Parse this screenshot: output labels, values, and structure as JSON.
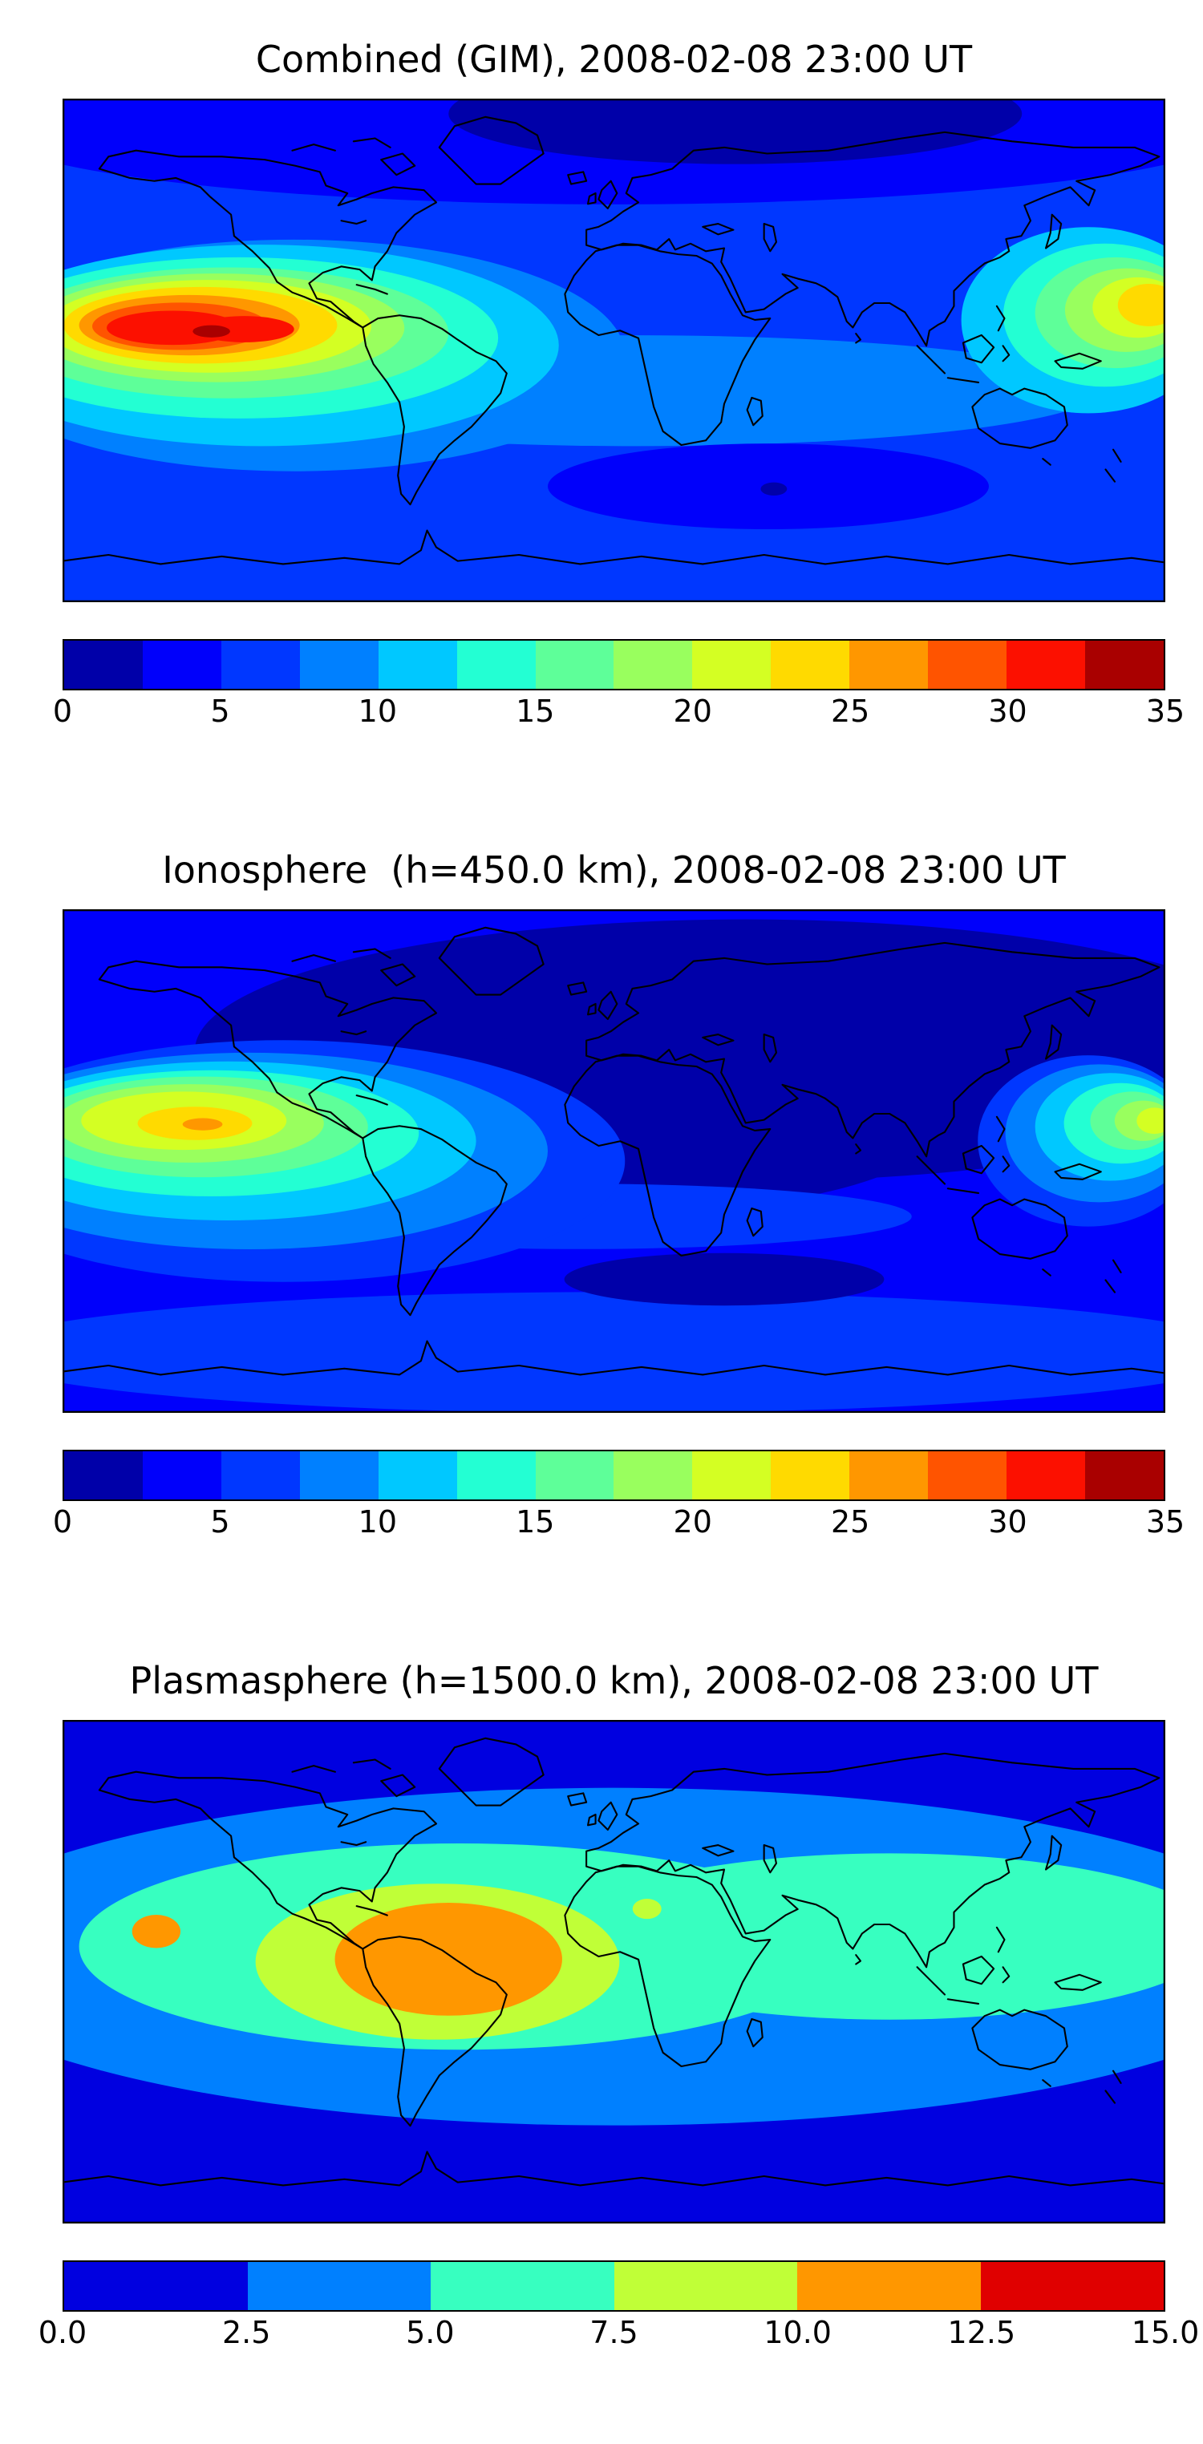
{
  "figure": {
    "background": "#ffffff",
    "frame_color": "#000000",
    "coastline_color": "#000000"
  },
  "chart_data": [
    {
      "type": "heatmap",
      "title": "Combined (GIM), 2008-02-08 23:00 UT",
      "subtitle": "",
      "projection": "equirectangular world map with black coastlines, filled contours",
      "colormap": "jet",
      "value_range": [
        0,
        35
      ],
      "contour_levels": [
        0,
        2.5,
        5,
        7.5,
        10,
        12.5,
        15,
        17.5,
        20,
        22.5,
        25,
        27.5,
        30,
        32.5,
        35
      ],
      "colors": [
        "#0000A9",
        "#0000FB",
        "#0037FF",
        "#0080FF",
        "#00C8FF",
        "#23FFD3",
        "#5EFF99",
        "#99FF5E",
        "#D4FF23",
        "#FFDA00",
        "#FF9700",
        "#FF5400",
        "#FC1000",
        "#A90000"
      ],
      "colorbar": {
        "orientation": "horizontal",
        "tick_values": [
          0,
          5,
          10,
          15,
          20,
          25,
          30,
          35
        ],
        "tick_labels": [
          "0",
          "5",
          "10",
          "15",
          "20",
          "25",
          "30",
          "35"
        ]
      },
      "base_value": 6,
      "features": [
        {
          "description": "primary maximum over eastern equatorial Pacific west of South America",
          "x": 0.12,
          "y": 0.46,
          "approx_value": 34
        },
        {
          "description": "secondary maximum over western equatorial Pacific at right edge",
          "x": 0.96,
          "y": 0.42,
          "approx_value": 25
        },
        {
          "description": "deep minimum over high northern latitudes (Siberia/Arctic)",
          "x": 0.61,
          "y": 0.05,
          "approx_value": 1.5
        },
        {
          "description": "low patch over southern Indian Ocean",
          "x": 0.64,
          "y": 0.77,
          "approx_value": 3
        }
      ],
      "blobs": [
        {
          "x": 0.5,
          "y": 0.05,
          "rx": 0.58,
          "ry": 0.16,
          "v": 4
        },
        {
          "x": 0.61,
          "y": 0.03,
          "rx": 0.26,
          "ry": 0.1,
          "v": 1.5
        },
        {
          "x": 0.52,
          "y": 0.58,
          "rx": 0.42,
          "ry": 0.11,
          "v": 9
        },
        {
          "x": 0.64,
          "y": 0.77,
          "rx": 0.2,
          "ry": 0.085,
          "v": 4
        },
        {
          "x": 0.645,
          "y": 0.775,
          "rx": 0.012,
          "ry": 0.013,
          "v": 1.5
        },
        {
          "x": 0.21,
          "y": 0.51,
          "rx": 0.3,
          "ry": 0.23,
          "v": 9
        },
        {
          "x": 0.18,
          "y": 0.49,
          "rx": 0.27,
          "ry": 0.2,
          "v": 11
        },
        {
          "x": 0.16,
          "y": 0.475,
          "rx": 0.235,
          "ry": 0.16,
          "v": 14
        },
        {
          "x": 0.15,
          "y": 0.465,
          "rx": 0.2,
          "ry": 0.13,
          "v": 16
        },
        {
          "x": 0.14,
          "y": 0.455,
          "rx": 0.17,
          "ry": 0.108,
          "v": 19
        },
        {
          "x": 0.133,
          "y": 0.452,
          "rx": 0.147,
          "ry": 0.092,
          "v": 21
        },
        {
          "x": 0.125,
          "y": 0.45,
          "rx": 0.124,
          "ry": 0.076,
          "v": 24
        },
        {
          "x": 0.115,
          "y": 0.45,
          "rx": 0.1,
          "ry": 0.06,
          "v": 26
        },
        {
          "x": 0.107,
          "y": 0.452,
          "rx": 0.08,
          "ry": 0.047,
          "v": 29
        },
        {
          "x": 0.1,
          "y": 0.455,
          "rx": 0.06,
          "ry": 0.034,
          "v": 31
        },
        {
          "x": 0.165,
          "y": 0.458,
          "rx": 0.045,
          "ry": 0.026,
          "v": 31
        },
        {
          "x": 0.135,
          "y": 0.462,
          "rx": 0.017,
          "ry": 0.012,
          "v": 34
        },
        {
          "x": 0.93,
          "y": 0.44,
          "rx": 0.115,
          "ry": 0.185,
          "v": 11
        },
        {
          "x": 0.945,
          "y": 0.43,
          "rx": 0.092,
          "ry": 0.142,
          "v": 14
        },
        {
          "x": 0.955,
          "y": 0.425,
          "rx": 0.073,
          "ry": 0.11,
          "v": 16
        },
        {
          "x": 0.965,
          "y": 0.42,
          "rx": 0.056,
          "ry": 0.083,
          "v": 19
        },
        {
          "x": 0.975,
          "y": 0.415,
          "rx": 0.041,
          "ry": 0.06,
          "v": 21
        },
        {
          "x": 0.985,
          "y": 0.41,
          "rx": 0.028,
          "ry": 0.042,
          "v": 24
        }
      ]
    },
    {
      "type": "heatmap",
      "title": "Ionosphere  (h=450.0 km), 2008-02-08 23:00 UT",
      "subtitle": "",
      "projection": "equirectangular world map with black coastlines, filled contours",
      "colormap": "jet",
      "value_range": [
        0,
        35
      ],
      "contour_levels": [
        0,
        2.5,
        5,
        7.5,
        10,
        12.5,
        15,
        17.5,
        20,
        22.5,
        25,
        27.5,
        30,
        32.5,
        35
      ],
      "colors": [
        "#0000A9",
        "#0000FB",
        "#0037FF",
        "#0080FF",
        "#00C8FF",
        "#23FFD3",
        "#5EFF99",
        "#99FF5E",
        "#D4FF23",
        "#FFDA00",
        "#FF9700",
        "#FF5400",
        "#FC1000",
        "#A90000"
      ],
      "colorbar": {
        "orientation": "horizontal",
        "tick_values": [
          0,
          5,
          10,
          15,
          20,
          25,
          30,
          35
        ],
        "tick_labels": [
          "0",
          "5",
          "10",
          "15",
          "20",
          "25",
          "30",
          "35"
        ]
      },
      "base_value": 4,
      "features": [
        {
          "description": "maximum over eastern equatorial Pacific",
          "x": 0.125,
          "y": 0.43,
          "approx_value": 26
        },
        {
          "description": "secondary maximum at right edge (western Pacific)",
          "x": 0.98,
          "y": 0.42,
          "approx_value": 21
        },
        {
          "description": "broad deep minimum covering Eurasia, Africa and Arctic mid-sector",
          "x": 0.6,
          "y": 0.3,
          "approx_value": 1.5
        },
        {
          "description": "low patch over southern Indian Ocean",
          "x": 0.6,
          "y": 0.73,
          "approx_value": 2
        }
      ],
      "blobs": [
        {
          "x": 0.62,
          "y": 0.28,
          "rx": 0.5,
          "ry": 0.26,
          "v": 1.5
        },
        {
          "x": 0.52,
          "y": 0.42,
          "rx": 0.28,
          "ry": 0.18,
          "v": 1.5
        },
        {
          "x": 0.5,
          "y": 0.88,
          "rx": 0.58,
          "ry": 0.12,
          "v": 6
        },
        {
          "x": 0.47,
          "y": 0.61,
          "rx": 0.3,
          "ry": 0.065,
          "v": 6
        },
        {
          "x": 0.6,
          "y": 0.735,
          "rx": 0.145,
          "ry": 0.052,
          "v": 1.5
        },
        {
          "x": 0.2,
          "y": 0.5,
          "rx": 0.31,
          "ry": 0.24,
          "v": 6
        },
        {
          "x": 0.17,
          "y": 0.48,
          "rx": 0.27,
          "ry": 0.195,
          "v": 9
        },
        {
          "x": 0.15,
          "y": 0.46,
          "rx": 0.225,
          "ry": 0.158,
          "v": 11
        },
        {
          "x": 0.135,
          "y": 0.445,
          "rx": 0.188,
          "ry": 0.125,
          "v": 14
        },
        {
          "x": 0.125,
          "y": 0.432,
          "rx": 0.152,
          "ry": 0.1,
          "v": 16
        },
        {
          "x": 0.115,
          "y": 0.425,
          "rx": 0.122,
          "ry": 0.078,
          "v": 19
        },
        {
          "x": 0.11,
          "y": 0.42,
          "rx": 0.093,
          "ry": 0.058,
          "v": 21
        },
        {
          "x": 0.12,
          "y": 0.425,
          "rx": 0.052,
          "ry": 0.033,
          "v": 24
        },
        {
          "x": 0.127,
          "y": 0.427,
          "rx": 0.018,
          "ry": 0.012,
          "v": 26
        },
        {
          "x": 0.93,
          "y": 0.46,
          "rx": 0.1,
          "ry": 0.17,
          "v": 6
        },
        {
          "x": 0.94,
          "y": 0.445,
          "rx": 0.085,
          "ry": 0.137,
          "v": 9
        },
        {
          "x": 0.95,
          "y": 0.432,
          "rx": 0.068,
          "ry": 0.107,
          "v": 11
        },
        {
          "x": 0.96,
          "y": 0.425,
          "rx": 0.052,
          "ry": 0.08,
          "v": 14
        },
        {
          "x": 0.97,
          "y": 0.42,
          "rx": 0.038,
          "ry": 0.058,
          "v": 16
        },
        {
          "x": 0.98,
          "y": 0.42,
          "rx": 0.026,
          "ry": 0.04,
          "v": 19
        },
        {
          "x": 0.99,
          "y": 0.42,
          "rx": 0.016,
          "ry": 0.026,
          "v": 21
        }
      ]
    },
    {
      "type": "heatmap",
      "title": "Plasmasphere (h=1500.0 km), 2008-02-08 23:00 UT",
      "subtitle": "",
      "projection": "equirectangular world map with black coastlines, filled contours",
      "colormap": "jet",
      "value_range": [
        0,
        15
      ],
      "contour_levels": [
        0,
        2.5,
        5,
        7.5,
        10,
        12.5,
        15
      ],
      "colors": [
        "#0000E0",
        "#0080FF",
        "#37FFC0",
        "#C0FF37",
        "#FF9700",
        "#E00000"
      ],
      "colorbar": {
        "orientation": "horizontal",
        "tick_values": [
          0,
          2.5,
          5,
          7.5,
          10,
          12.5,
          15
        ],
        "tick_labels": [
          "0.0",
          "2.5",
          "5.0",
          "7.5",
          "10.0",
          "12.5",
          "15.0"
        ]
      },
      "base_value": 1,
      "features": [
        {
          "description": "maximum over South America (Brazil/Amazon sector)",
          "x": 0.35,
          "y": 0.48,
          "approx_value": 11
        },
        {
          "description": "small secondary orange spot in eastern Pacific",
          "x": 0.085,
          "y": 0.42,
          "approx_value": 11
        },
        {
          "description": "broad equatorial aquamarine band spanning most longitudes",
          "x": 0.55,
          "y": 0.45,
          "approx_value": 6
        },
        {
          "description": "polar minima along top and bottom of map",
          "x": 0.5,
          "y": 0.05,
          "approx_value": 1
        }
      ],
      "blobs": [
        {
          "x": 0.5,
          "y": 0.47,
          "rx": 0.63,
          "ry": 0.335,
          "v": 3.5
        },
        {
          "x": 0.36,
          "y": 0.45,
          "rx": 0.345,
          "ry": 0.205,
          "v": 6
        },
        {
          "x": 0.75,
          "y": 0.43,
          "rx": 0.3,
          "ry": 0.165,
          "v": 6
        },
        {
          "x": 0.34,
          "y": 0.48,
          "rx": 0.165,
          "ry": 0.155,
          "v": 8.5
        },
        {
          "x": 0.53,
          "y": 0.375,
          "rx": 0.013,
          "ry": 0.02,
          "v": 8.5
        },
        {
          "x": 0.35,
          "y": 0.475,
          "rx": 0.103,
          "ry": 0.112,
          "v": 11
        },
        {
          "x": 0.085,
          "y": 0.42,
          "rx": 0.022,
          "ry": 0.033,
          "v": 11
        }
      ]
    }
  ]
}
